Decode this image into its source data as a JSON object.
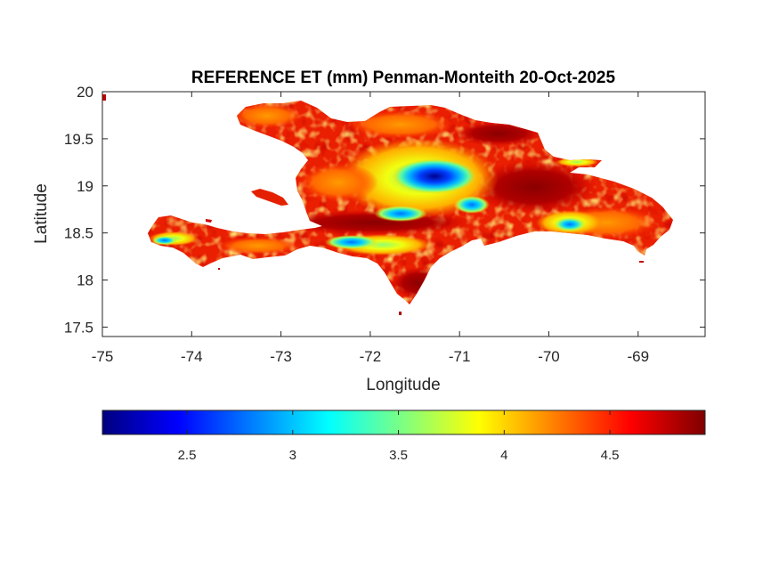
{
  "chart_data": {
    "type": "heatmap",
    "title": "REFERENCE ET (mm) Penman-Monteith 20-Oct-2025",
    "xlabel": "Longitude",
    "ylabel": "Latitude",
    "xlim": [
      -75,
      -68.25
    ],
    "ylim": [
      17.4,
      20
    ],
    "xticks": [
      "-75",
      "-74",
      "-73",
      "-72",
      "-71",
      "-70",
      "-69"
    ],
    "xtick_values": [
      -75,
      -74,
      -73,
      -72,
      -71,
      -70,
      -69
    ],
    "yticks": [
      "20",
      "19.5",
      "19",
      "18.5",
      "18",
      "17.5"
    ],
    "ytick_values": [
      20,
      19.5,
      19,
      18.5,
      18,
      17.5
    ],
    "grid": false,
    "colormap": "jet",
    "colorbar": {
      "orientation": "horizontal",
      "placement": "below",
      "range": [
        2.1,
        4.95
      ],
      "ticks": [
        "2.5",
        "3",
        "3.5",
        "4",
        "4.5"
      ],
      "tick_values": [
        2.5,
        3,
        3.5,
        4,
        4.5
      ]
    },
    "dominant_value": 4.6,
    "low_value_zones": [
      {
        "lon": -71.2,
        "lat": 19.1,
        "value": 2.4
      },
      {
        "lon": -71.55,
        "lat": 18.7,
        "value": 3.0
      },
      {
        "lon": -72.3,
        "lat": 18.4,
        "value": 3.2
      },
      {
        "lon": -69.8,
        "lat": 18.55,
        "value": 3.7
      },
      {
        "lon": -74.2,
        "lat": 18.45,
        "value": 3.6
      },
      {
        "lon": -70.75,
        "lat": 18.8,
        "value": 3.1
      }
    ]
  }
}
